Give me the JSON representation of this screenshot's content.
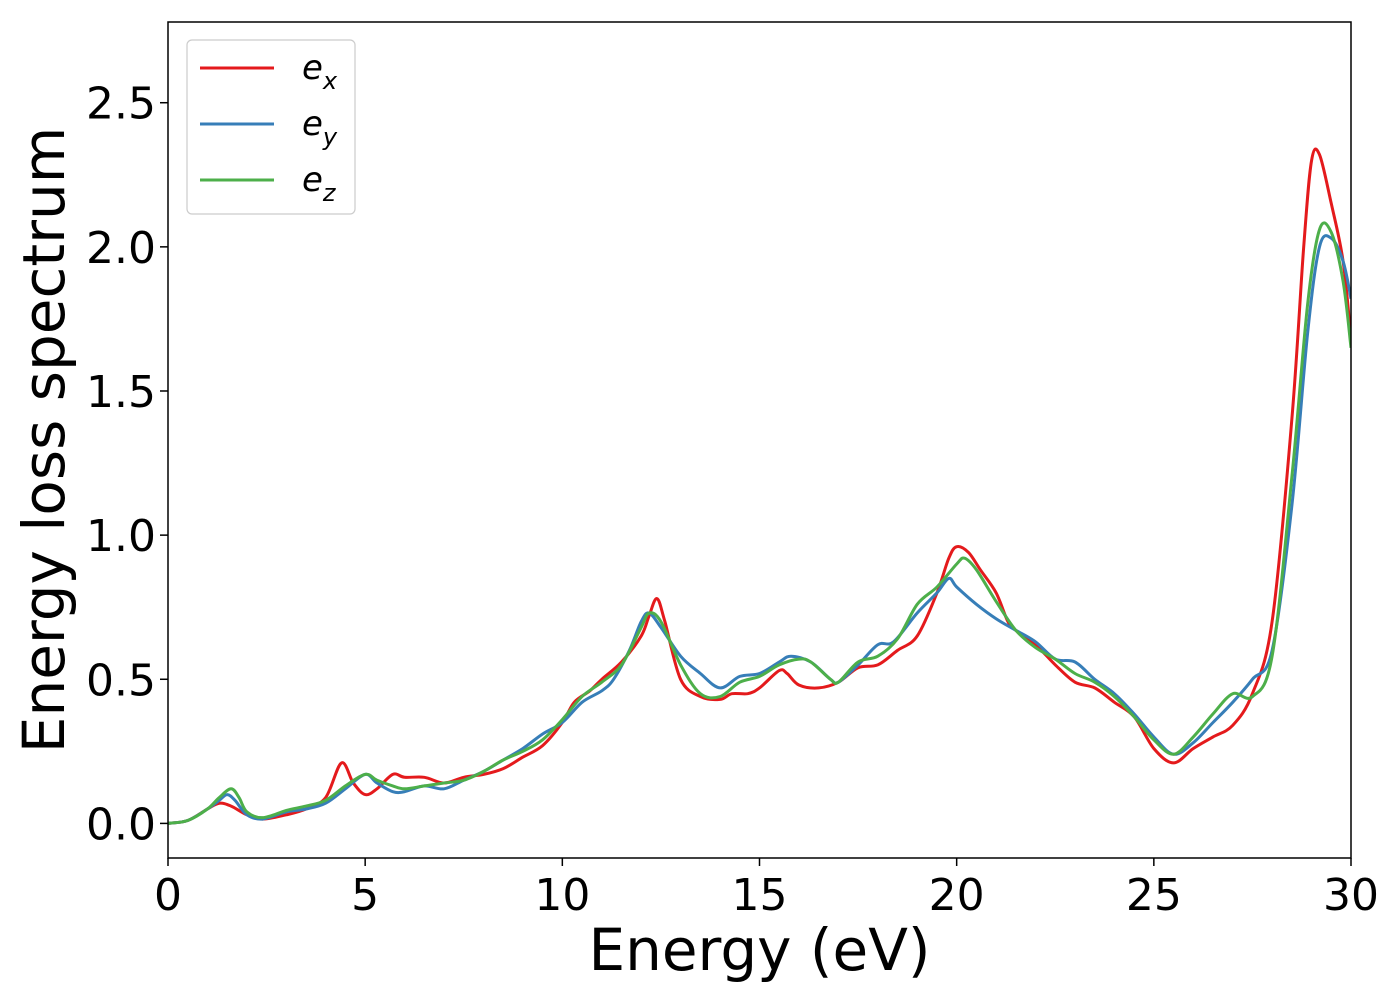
{
  "chart_data": {
    "type": "line",
    "title": "",
    "xlabel": "Energy (eV)",
    "ylabel": "Energy loss spectrum",
    "xlim": [
      0,
      30
    ],
    "ylim": [
      -0.12,
      2.78
    ],
    "xticks": [
      0,
      5,
      10,
      15,
      20,
      25,
      30
    ],
    "xtick_labels": [
      "0",
      "5",
      "10",
      "15",
      "20",
      "25",
      "30"
    ],
    "yticks": [
      0.0,
      0.5,
      1.0,
      1.5,
      2.0,
      2.5
    ],
    "ytick_labels": [
      "0.0",
      "0.5",
      "1.0",
      "1.5",
      "2.0",
      "2.5"
    ],
    "grid": false,
    "legend_position": "top-left",
    "series": [
      {
        "name": "e_x",
        "label_base": "e",
        "label_sub": "x",
        "color": "#e41a1c",
        "points": [
          [
            0,
            0.0
          ],
          [
            0.5,
            0.01
          ],
          [
            1.0,
            0.05
          ],
          [
            1.3,
            0.07
          ],
          [
            1.6,
            0.06
          ],
          [
            2.0,
            0.03
          ],
          [
            2.4,
            0.015
          ],
          [
            3.0,
            0.03
          ],
          [
            3.5,
            0.05
          ],
          [
            4.0,
            0.09
          ],
          [
            4.4,
            0.21
          ],
          [
            4.7,
            0.14
          ],
          [
            5.0,
            0.1
          ],
          [
            5.3,
            0.12
          ],
          [
            5.7,
            0.17
          ],
          [
            6.0,
            0.16
          ],
          [
            6.5,
            0.16
          ],
          [
            7.0,
            0.14
          ],
          [
            7.5,
            0.16
          ],
          [
            8.0,
            0.17
          ],
          [
            8.5,
            0.19
          ],
          [
            9.0,
            0.23
          ],
          [
            9.5,
            0.27
          ],
          [
            10.0,
            0.35
          ],
          [
            10.3,
            0.42
          ],
          [
            10.7,
            0.46
          ],
          [
            11.0,
            0.5
          ],
          [
            11.5,
            0.56
          ],
          [
            12.0,
            0.65
          ],
          [
            12.2,
            0.72
          ],
          [
            12.4,
            0.78
          ],
          [
            12.6,
            0.7
          ],
          [
            13.0,
            0.5
          ],
          [
            13.5,
            0.44
          ],
          [
            14.0,
            0.43
          ],
          [
            14.3,
            0.45
          ],
          [
            14.7,
            0.45
          ],
          [
            15.0,
            0.47
          ],
          [
            15.5,
            0.53
          ],
          [
            15.7,
            0.52
          ],
          [
            16.0,
            0.48
          ],
          [
            16.5,
            0.47
          ],
          [
            17.0,
            0.49
          ],
          [
            17.5,
            0.54
          ],
          [
            18.0,
            0.55
          ],
          [
            18.5,
            0.6
          ],
          [
            19.0,
            0.65
          ],
          [
            19.5,
            0.8
          ],
          [
            19.8,
            0.92
          ],
          [
            20.0,
            0.96
          ],
          [
            20.3,
            0.94
          ],
          [
            20.6,
            0.88
          ],
          [
            21.0,
            0.8
          ],
          [
            21.3,
            0.7
          ],
          [
            21.5,
            0.67
          ],
          [
            22.0,
            0.62
          ],
          [
            22.5,
            0.55
          ],
          [
            23.0,
            0.49
          ],
          [
            23.5,
            0.47
          ],
          [
            24.0,
            0.42
          ],
          [
            24.5,
            0.37
          ],
          [
            25.0,
            0.26
          ],
          [
            25.5,
            0.21
          ],
          [
            26.0,
            0.26
          ],
          [
            26.5,
            0.3
          ],
          [
            27.0,
            0.34
          ],
          [
            27.5,
            0.45
          ],
          [
            28.0,
            0.7
          ],
          [
            28.5,
            1.4
          ],
          [
            28.8,
            2.0
          ],
          [
            29.0,
            2.3
          ],
          [
            29.2,
            2.32
          ],
          [
            29.5,
            2.15
          ],
          [
            29.8,
            1.95
          ],
          [
            30.0,
            1.68
          ]
        ]
      },
      {
        "name": "e_y",
        "label_base": "e",
        "label_sub": "y",
        "color": "#377eb8",
        "points": [
          [
            0,
            0.0
          ],
          [
            0.5,
            0.01
          ],
          [
            1.0,
            0.05
          ],
          [
            1.3,
            0.08
          ],
          [
            1.5,
            0.1
          ],
          [
            1.7,
            0.08
          ],
          [
            2.0,
            0.03
          ],
          [
            2.4,
            0.015
          ],
          [
            3.0,
            0.04
          ],
          [
            3.5,
            0.05
          ],
          [
            4.0,
            0.07
          ],
          [
            4.5,
            0.12
          ],
          [
            5.0,
            0.17
          ],
          [
            5.3,
            0.14
          ],
          [
            5.7,
            0.11
          ],
          [
            6.0,
            0.11
          ],
          [
            6.5,
            0.13
          ],
          [
            7.0,
            0.12
          ],
          [
            7.5,
            0.15
          ],
          [
            8.0,
            0.18
          ],
          [
            8.5,
            0.22
          ],
          [
            9.0,
            0.26
          ],
          [
            9.5,
            0.31
          ],
          [
            10.0,
            0.35
          ],
          [
            10.5,
            0.42
          ],
          [
            11.0,
            0.46
          ],
          [
            11.3,
            0.5
          ],
          [
            11.7,
            0.6
          ],
          [
            12.0,
            0.7
          ],
          [
            12.2,
            0.73
          ],
          [
            12.5,
            0.68
          ],
          [
            13.0,
            0.58
          ],
          [
            13.5,
            0.52
          ],
          [
            14.0,
            0.47
          ],
          [
            14.5,
            0.51
          ],
          [
            15.0,
            0.52
          ],
          [
            15.5,
            0.56
          ],
          [
            15.8,
            0.58
          ],
          [
            16.3,
            0.56
          ],
          [
            16.8,
            0.5
          ],
          [
            17.0,
            0.49
          ],
          [
            17.5,
            0.55
          ],
          [
            18.0,
            0.62
          ],
          [
            18.4,
            0.63
          ],
          [
            19.0,
            0.73
          ],
          [
            19.5,
            0.8
          ],
          [
            19.8,
            0.85
          ],
          [
            20.0,
            0.82
          ],
          [
            20.5,
            0.76
          ],
          [
            21.0,
            0.71
          ],
          [
            21.5,
            0.67
          ],
          [
            22.0,
            0.63
          ],
          [
            22.5,
            0.57
          ],
          [
            23.0,
            0.56
          ],
          [
            23.5,
            0.5
          ],
          [
            24.0,
            0.45
          ],
          [
            24.5,
            0.38
          ],
          [
            25.0,
            0.3
          ],
          [
            25.5,
            0.24
          ],
          [
            26.0,
            0.28
          ],
          [
            26.5,
            0.35
          ],
          [
            27.0,
            0.42
          ],
          [
            27.5,
            0.5
          ],
          [
            28.0,
            0.6
          ],
          [
            28.5,
            1.1
          ],
          [
            28.9,
            1.7
          ],
          [
            29.2,
            2.0
          ],
          [
            29.5,
            2.03
          ],
          [
            29.8,
            1.95
          ],
          [
            30.0,
            1.82
          ]
        ]
      },
      {
        "name": "e_z",
        "label_base": "e",
        "label_sub": "z",
        "color": "#4daf4a",
        "points": [
          [
            0,
            0.0
          ],
          [
            0.5,
            0.01
          ],
          [
            1.0,
            0.05
          ],
          [
            1.3,
            0.09
          ],
          [
            1.6,
            0.12
          ],
          [
            1.8,
            0.09
          ],
          [
            2.0,
            0.04
          ],
          [
            2.4,
            0.02
          ],
          [
            3.0,
            0.045
          ],
          [
            3.5,
            0.06
          ],
          [
            4.0,
            0.08
          ],
          [
            4.5,
            0.13
          ],
          [
            5.0,
            0.17
          ],
          [
            5.3,
            0.15
          ],
          [
            5.7,
            0.13
          ],
          [
            6.0,
            0.12
          ],
          [
            6.5,
            0.13
          ],
          [
            7.0,
            0.14
          ],
          [
            7.5,
            0.15
          ],
          [
            8.0,
            0.18
          ],
          [
            8.5,
            0.22
          ],
          [
            9.0,
            0.25
          ],
          [
            9.5,
            0.29
          ],
          [
            10.0,
            0.36
          ],
          [
            10.5,
            0.44
          ],
          [
            11.0,
            0.49
          ],
          [
            11.5,
            0.55
          ],
          [
            12.0,
            0.68
          ],
          [
            12.2,
            0.73
          ],
          [
            12.5,
            0.7
          ],
          [
            13.0,
            0.55
          ],
          [
            13.5,
            0.45
          ],
          [
            14.0,
            0.44
          ],
          [
            14.5,
            0.49
          ],
          [
            15.0,
            0.51
          ],
          [
            15.5,
            0.55
          ],
          [
            16.0,
            0.57
          ],
          [
            16.3,
            0.56
          ],
          [
            16.8,
            0.5
          ],
          [
            17.0,
            0.49
          ],
          [
            17.5,
            0.56
          ],
          [
            18.0,
            0.58
          ],
          [
            18.5,
            0.64
          ],
          [
            19.0,
            0.76
          ],
          [
            19.5,
            0.82
          ],
          [
            20.0,
            0.9
          ],
          [
            20.2,
            0.92
          ],
          [
            20.5,
            0.88
          ],
          [
            21.0,
            0.77
          ],
          [
            21.5,
            0.67
          ],
          [
            22.0,
            0.61
          ],
          [
            22.5,
            0.57
          ],
          [
            23.0,
            0.52
          ],
          [
            23.5,
            0.49
          ],
          [
            24.0,
            0.44
          ],
          [
            24.5,
            0.37
          ],
          [
            25.0,
            0.29
          ],
          [
            25.5,
            0.24
          ],
          [
            26.0,
            0.3
          ],
          [
            26.5,
            0.38
          ],
          [
            27.0,
            0.45
          ],
          [
            27.5,
            0.44
          ],
          [
            28.0,
            0.58
          ],
          [
            28.5,
            1.2
          ],
          [
            28.9,
            1.8
          ],
          [
            29.2,
            2.06
          ],
          [
            29.5,
            2.05
          ],
          [
            29.8,
            1.88
          ],
          [
            30.0,
            1.65
          ]
        ]
      }
    ]
  }
}
